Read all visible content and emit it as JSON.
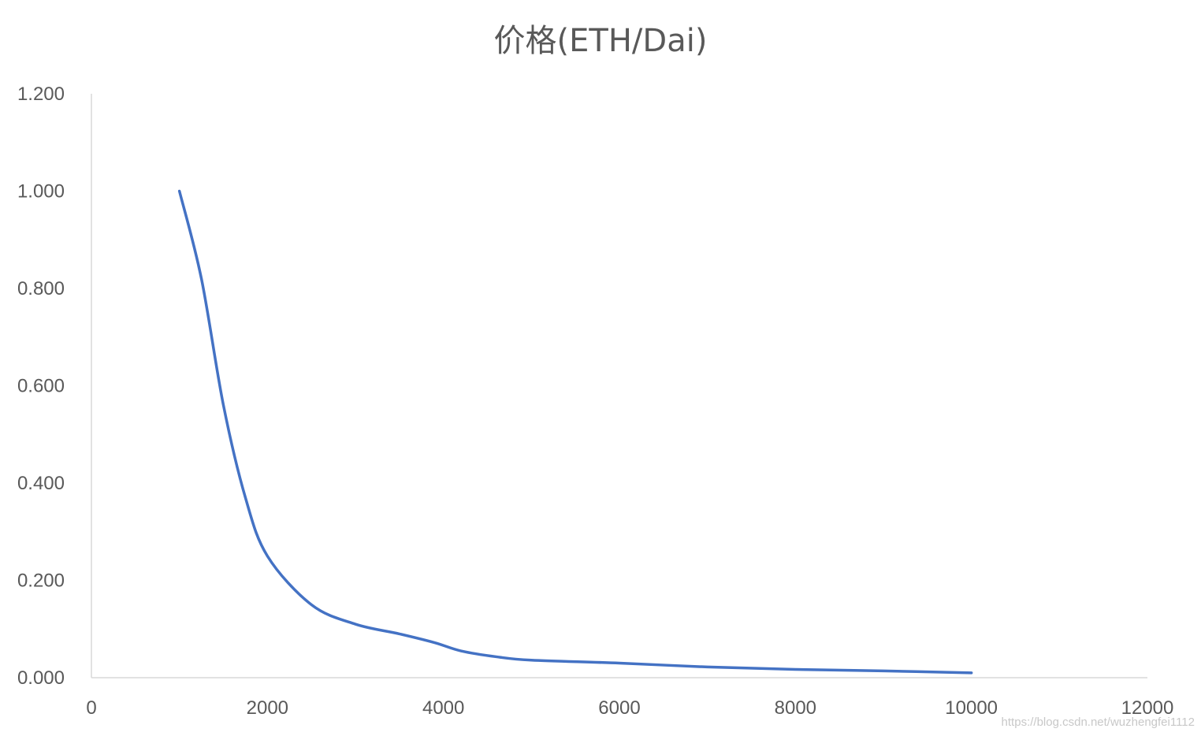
{
  "chart_data": {
    "type": "line",
    "title": "价格(ETH/Dai)",
    "xlabel": "",
    "ylabel": "",
    "xlim": [
      0,
      12000
    ],
    "ylim": [
      0,
      1.2
    ],
    "x_ticks": [
      "0",
      "2000",
      "4000",
      "6000",
      "8000",
      "10000",
      "12000"
    ],
    "y_ticks": [
      "0.000",
      "0.200",
      "0.400",
      "0.600",
      "0.800",
      "1.000",
      "1.200"
    ],
    "grid": false,
    "legend": "none",
    "smooth": true,
    "series": [
      {
        "color": "#4472C4",
        "points": [
          [
            1000,
            1.0
          ],
          [
            1250,
            0.82
          ],
          [
            1500,
            0.56
          ],
          [
            1750,
            0.37
          ],
          [
            2000,
            0.25
          ],
          [
            2500,
            0.15
          ],
          [
            3000,
            0.11
          ],
          [
            3500,
            0.09
          ],
          [
            3900,
            0.072
          ],
          [
            4200,
            0.055
          ],
          [
            4600,
            0.043
          ],
          [
            5000,
            0.036
          ],
          [
            6000,
            0.03
          ],
          [
            7000,
            0.022
          ],
          [
            8000,
            0.017
          ],
          [
            9000,
            0.014
          ],
          [
            10000,
            0.01
          ]
        ]
      }
    ]
  },
  "watermark": "https://blog.csdn.net/wuzhengfei1112"
}
